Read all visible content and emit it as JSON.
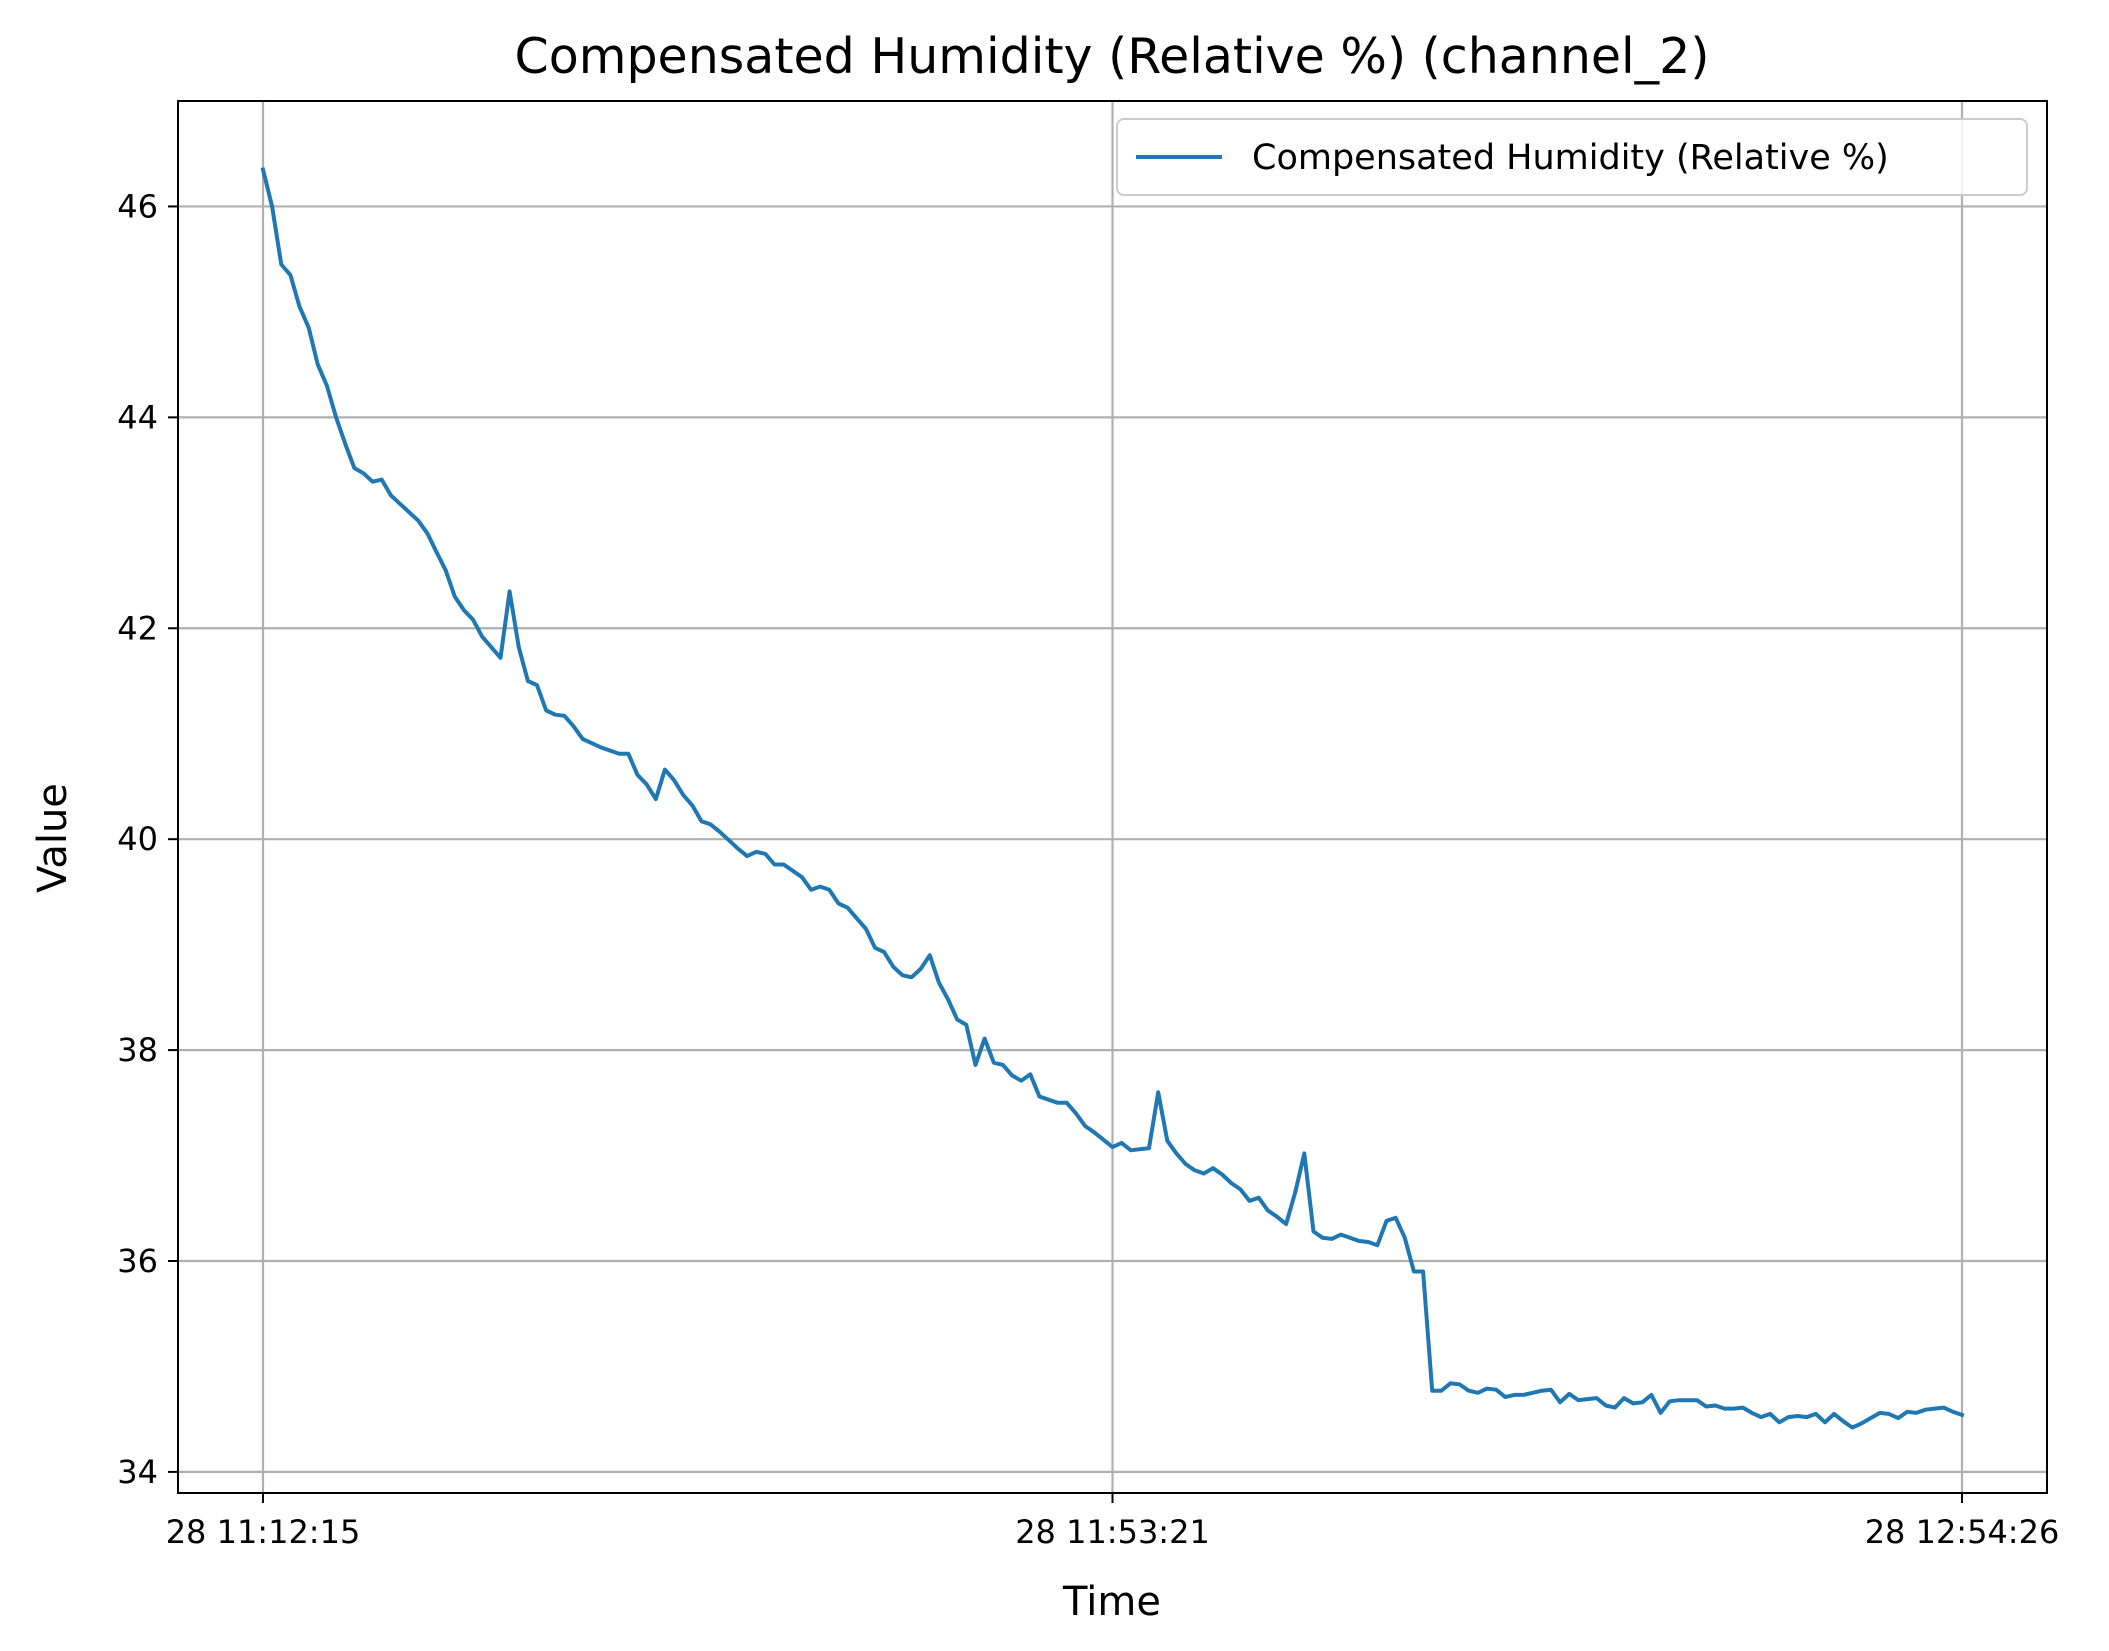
{
  "chart_data": {
    "type": "line",
    "title": "Compensated Humidity (Relative %) (channel_2)",
    "xlabel": "Time",
    "ylabel": "Value",
    "ylim": [
      33.8,
      47.0
    ],
    "yticks": [
      34,
      36,
      38,
      40,
      42,
      44,
      46
    ],
    "xticks": [
      "28 11:12:15",
      "28 11:53:21",
      "28 12:54:26"
    ],
    "grid": true,
    "legend_position": "top-right",
    "colors": {
      "series": "#1f77b4",
      "grid": "#b0b0b0"
    },
    "series": [
      {
        "name": "Compensated Humidity (Relative %)",
        "values": [
          46.35,
          46.0,
          45.45,
          45.35,
          45.05,
          44.85,
          44.5,
          44.3,
          44.0,
          43.75,
          43.52,
          43.47,
          43.39,
          43.41,
          43.26,
          43.18,
          43.1,
          43.02,
          42.9,
          42.72,
          42.55,
          42.3,
          42.17,
          42.08,
          41.92,
          41.82,
          41.72,
          42.35,
          41.82,
          41.5,
          41.46,
          41.22,
          41.18,
          41.17,
          41.07,
          40.95,
          40.91,
          40.87,
          40.84,
          40.81,
          40.81,
          40.61,
          40.52,
          40.38,
          40.66,
          40.56,
          40.42,
          40.32,
          40.17,
          40.14,
          40.07,
          39.99,
          39.91,
          39.84,
          39.88,
          39.86,
          39.76,
          39.76,
          39.7,
          39.64,
          39.52,
          39.55,
          39.52,
          39.39,
          39.35,
          39.25,
          39.15,
          38.97,
          38.93,
          38.79,
          38.71,
          38.69,
          38.77,
          38.9,
          38.64,
          38.48,
          38.29,
          38.24,
          37.86,
          38.11,
          37.88,
          37.86,
          37.76,
          37.71,
          37.77,
          37.56,
          37.53,
          37.5,
          37.5,
          37.4,
          37.28,
          37.22,
          37.15,
          37.08,
          37.12,
          37.05,
          37.06,
          37.07,
          37.6,
          37.14,
          37.02,
          36.92,
          36.86,
          36.83,
          36.88,
          36.82,
          36.74,
          36.68,
          36.57,
          36.6,
          36.48,
          36.42,
          36.35,
          36.65,
          37.02,
          36.28,
          36.22,
          36.21,
          36.25,
          36.22,
          36.19,
          36.18,
          36.15,
          36.38,
          36.41,
          36.22,
          35.9,
          35.9,
          34.77,
          34.77,
          34.84,
          34.83,
          34.77,
          34.75,
          34.79,
          34.78,
          34.71,
          34.73,
          34.73,
          34.75,
          34.77,
          34.78,
          34.66,
          34.74,
          34.68,
          34.69,
          34.7,
          34.63,
          34.61,
          34.7,
          34.65,
          34.66,
          34.73,
          34.56,
          34.67,
          34.68,
          34.68,
          34.68,
          34.62,
          34.63,
          34.6,
          34.6,
          34.61,
          34.56,
          34.52,
          34.55,
          34.47,
          34.52,
          34.53,
          34.52,
          34.55,
          34.47,
          34.55,
          34.48,
          34.42,
          34.46,
          34.51,
          34.56,
          34.55,
          34.51,
          34.57,
          34.56,
          34.59,
          34.6,
          34.61,
          34.57,
          34.54
        ]
      }
    ]
  }
}
